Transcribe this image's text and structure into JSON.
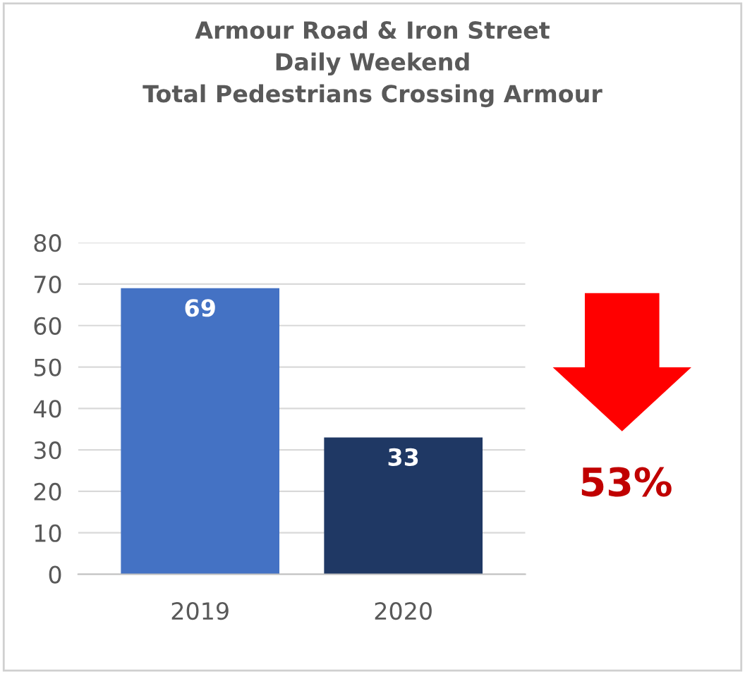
{
  "chart_data": {
    "type": "bar",
    "title": "Armour Road & Iron Street\nDaily Weekend\nTotal Pedestrians Crossing Armour",
    "categories": [
      "2019",
      "2020"
    ],
    "values": [
      69,
      33
    ],
    "colors": [
      "#4472c4",
      "#1f3864"
    ],
    "ylim": [
      0,
      80
    ],
    "yticks": [
      0,
      10,
      20,
      30,
      40,
      50,
      60,
      70,
      80
    ],
    "grid": "y",
    "data_labels": true,
    "annotations": [
      "53%"
    ]
  }
}
